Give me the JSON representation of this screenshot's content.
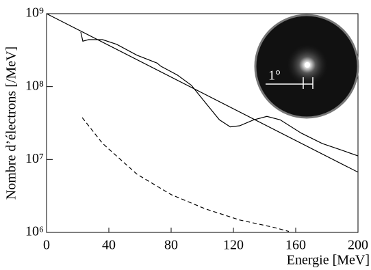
{
  "chart_data": {
    "type": "line",
    "xlabel": "Energie [MeV]",
    "ylabel": "Nombre d’électrons [/MeV]",
    "xlim": [
      0,
      200
    ],
    "xticks": [
      0,
      40,
      80,
      120,
      160,
      200
    ],
    "ylim": [
      1000000,
      1000000000
    ],
    "yticks": [
      {
        "value": 1000000,
        "label": "10⁶"
      },
      {
        "value": 10000000,
        "label": "10⁷"
      },
      {
        "value": 100000000,
        "label": "10⁸"
      },
      {
        "value": 1000000000,
        "label": "10⁹"
      }
    ],
    "log_y": true,
    "series": [
      {
        "color": "#000000",
        "dashed": false,
        "x": [
          22,
          23.3,
          27,
          36,
          45,
          58,
          71,
          73.4,
          84,
          93,
          102,
          111,
          118,
          124,
          133,
          141.5,
          150,
          163.5,
          177,
          190,
          200
        ],
        "values": [
          560000000,
          420000000,
          440000000,
          440000000,
          380000000,
          270000000,
          210000000,
          190000000,
          144000000,
          104000000,
          60000000,
          35000000,
          28000000,
          29000000,
          35000000,
          39000000,
          35000000,
          23000000,
          16600000,
          13300000,
          11200000
        ]
      },
      {
        "color": "#000000",
        "dashed": false,
        "x": [
          0,
          200
        ],
        "values": [
          1000000000,
          6700000
        ]
      },
      {
        "color": "#000000",
        "dashed": true,
        "x": [
          22.9,
          36,
          58,
          80,
          102,
          124,
          146,
          155.6
        ],
        "values": [
          37600000,
          16600000,
          6300000,
          3300000,
          2100000,
          1480000,
          1170000,
          1030000
        ]
      }
    ],
    "inset_label": "1°"
  }
}
